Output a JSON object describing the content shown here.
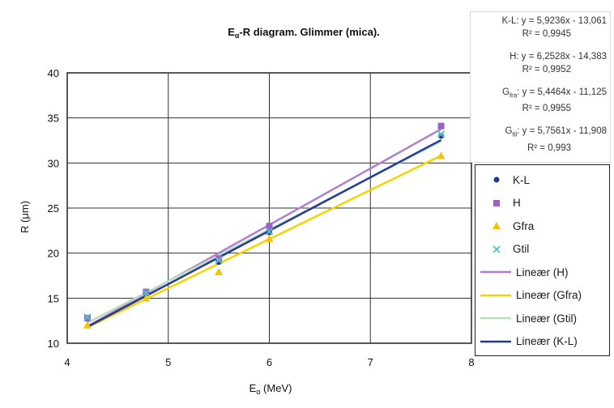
{
  "chart_data": {
    "type": "scatter",
    "title_main": "E",
    "title_sub": "α",
    "title_rest": "-R diagram. Glimmer (mica).",
    "xlabel_main": "E",
    "xlabel_sub": "α",
    "xlabel_rest": " (MeV)",
    "ylabel": "R (μm)",
    "xlim": [
      4,
      8
    ],
    "ylim": [
      10,
      40
    ],
    "xticks": [
      4,
      5,
      6,
      7,
      8
    ],
    "yticks": [
      10,
      15,
      20,
      25,
      30,
      35,
      40
    ],
    "grid": true,
    "legend_position": "right",
    "series": [
      {
        "name": "K-L",
        "marker": "circle",
        "color": "#1f3a93",
        "points": [
          [
            4.2,
            12.7
          ],
          [
            4.78,
            15.5
          ],
          [
            5.5,
            19.0
          ],
          [
            6.0,
            22.3
          ],
          [
            7.7,
            33.0
          ]
        ]
      },
      {
        "name": "H",
        "marker": "square",
        "color": "#a05fc4",
        "points": [
          [
            4.2,
            12.8
          ],
          [
            4.78,
            15.7
          ],
          [
            5.5,
            19.4
          ],
          [
            6.0,
            23.0
          ],
          [
            7.7,
            34.1
          ]
        ]
      },
      {
        "name": "Gfra",
        "marker": "triangle",
        "color": "#f5c400",
        "points": [
          [
            4.2,
            12.0
          ],
          [
            4.78,
            15.0
          ],
          [
            5.5,
            17.9
          ],
          [
            6.0,
            21.6
          ],
          [
            7.7,
            30.8
          ]
        ]
      },
      {
        "name": "Gtil",
        "marker": "x",
        "color": "#4fbfd0",
        "points": [
          [
            4.2,
            12.9
          ],
          [
            4.78,
            15.6
          ],
          [
            5.5,
            19.2
          ],
          [
            6.0,
            22.4
          ],
          [
            7.7,
            33.2
          ]
        ]
      }
    ],
    "trendlines": [
      {
        "name": "Lineær (H)",
        "color": "#b07fd0",
        "slope": 6.2528,
        "intercept": -14.383,
        "x_range": [
          4.2,
          7.7
        ]
      },
      {
        "name": "Lineær (Gfra)",
        "color": "#f5d400",
        "slope": 5.4464,
        "intercept": -11.125,
        "x_range": [
          4.2,
          7.7
        ]
      },
      {
        "name": "Lineær (Gtil)",
        "color": "#b8e0b8",
        "slope": 5.7561,
        "intercept": -11.908,
        "x_range": [
          4.2,
          7.7
        ]
      },
      {
        "name": "Lineær (K-L)",
        "color": "#23399e",
        "slope": 5.9236,
        "intercept": -13.061,
        "x_range": [
          4.2,
          7.7
        ]
      }
    ],
    "equations": [
      {
        "label": "K-L",
        "label_sub": "",
        "eq": ": y = 5,9236x - 13,061",
        "r2": "R² = 0,9945"
      },
      {
        "label": "H",
        "label_sub": "",
        "eq": ": y = 6,2528x - 14,383",
        "r2": "R² = 0,9952"
      },
      {
        "label": "G",
        "label_sub": "fra",
        "eq": ": y = 5,4464x - 11,125",
        "r2": "R² = 0,9955"
      },
      {
        "label": "G",
        "label_sub": "til",
        "eq": ": y = 5,7561x - 11,908",
        "r2": "R² = 0,993"
      }
    ]
  }
}
